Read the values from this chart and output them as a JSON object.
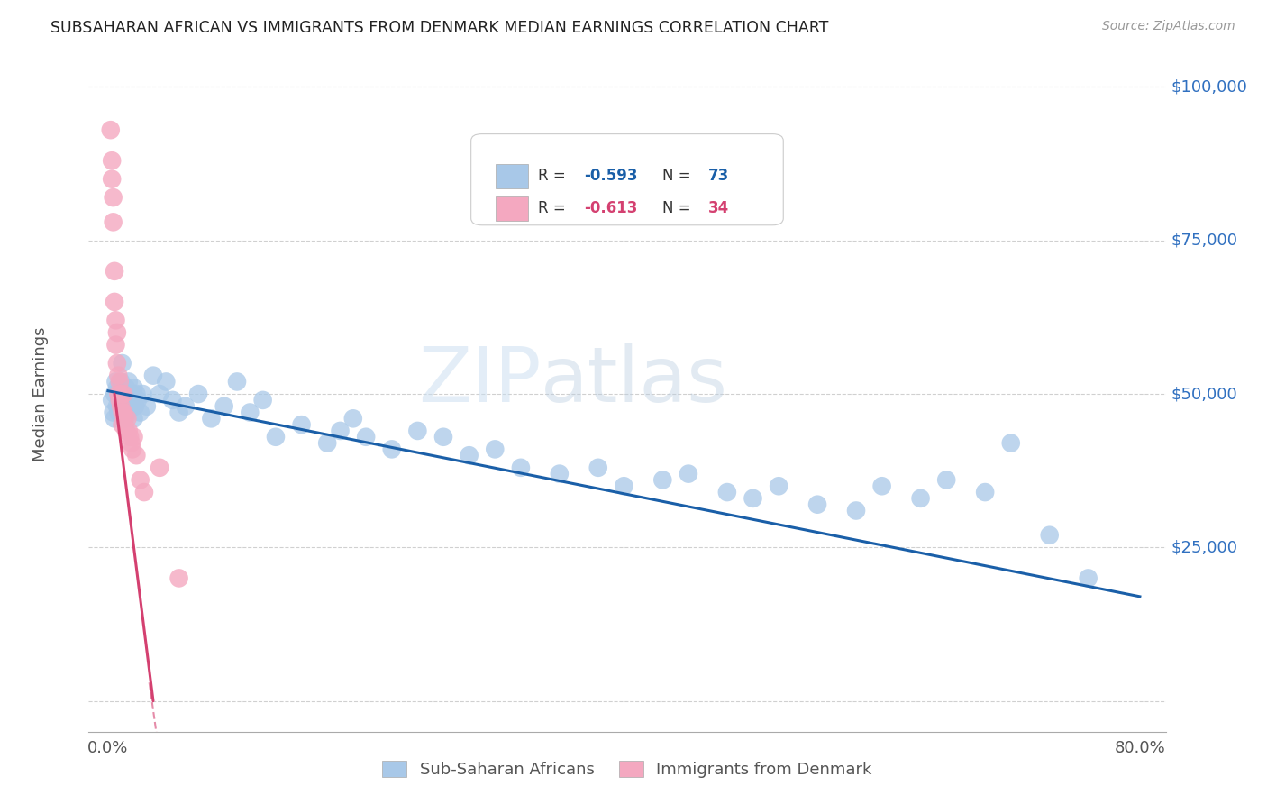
{
  "title": "SUBSAHARAN AFRICAN VS IMMIGRANTS FROM DENMARK MEDIAN EARNINGS CORRELATION CHART",
  "source": "Source: ZipAtlas.com",
  "ylabel": "Median Earnings",
  "watermark_zip": "ZIP",
  "watermark_atlas": "atlas",
  "blue_label": "Sub-Saharan Africans",
  "pink_label": "Immigrants from Denmark",
  "blue_R": "-0.593",
  "blue_N": "73",
  "pink_R": "-0.613",
  "pink_N": "34",
  "blue_scatter_color": "#a8c8e8",
  "blue_line_color": "#1a5fa8",
  "pink_scatter_color": "#f4a8c0",
  "pink_line_color": "#d44070",
  "background_color": "#ffffff",
  "grid_color": "#d0d0d0",
  "blue_scatter_x": [
    0.3,
    0.4,
    0.5,
    0.5,
    0.6,
    0.7,
    0.7,
    0.8,
    0.8,
    0.9,
    1.0,
    1.0,
    1.1,
    1.2,
    1.2,
    1.3,
    1.3,
    1.4,
    1.5,
    1.5,
    1.6,
    1.7,
    1.8,
    1.9,
    2.0,
    2.0,
    2.1,
    2.2,
    2.3,
    2.5,
    2.7,
    3.0,
    3.5,
    4.0,
    4.5,
    5.0,
    5.5,
    6.0,
    7.0,
    8.0,
    9.0,
    10.0,
    11.0,
    12.0,
    13.0,
    15.0,
    17.0,
    18.0,
    19.0,
    20.0,
    22.0,
    24.0,
    26.0,
    28.0,
    30.0,
    32.0,
    35.0,
    38.0,
    40.0,
    43.0,
    45.0,
    48.0,
    50.0,
    52.0,
    55.0,
    58.0,
    60.0,
    63.0,
    65.0,
    68.0,
    70.0,
    73.0,
    76.0
  ],
  "blue_scatter_y": [
    49000,
    47000,
    50000,
    46000,
    52000,
    48000,
    51000,
    50000,
    47000,
    49000,
    52000,
    48000,
    55000,
    50000,
    47000,
    49000,
    46000,
    51000,
    50000,
    47000,
    52000,
    49000,
    48000,
    50000,
    51000,
    46000,
    48000,
    50000,
    49000,
    47000,
    50000,
    48000,
    53000,
    50000,
    52000,
    49000,
    47000,
    48000,
    50000,
    46000,
    48000,
    52000,
    47000,
    49000,
    43000,
    45000,
    42000,
    44000,
    46000,
    43000,
    41000,
    44000,
    43000,
    40000,
    41000,
    38000,
    37000,
    38000,
    35000,
    36000,
    37000,
    34000,
    33000,
    35000,
    32000,
    31000,
    35000,
    33000,
    36000,
    34000,
    42000,
    27000,
    20000
  ],
  "pink_scatter_x": [
    0.2,
    0.3,
    0.3,
    0.4,
    0.4,
    0.5,
    0.5,
    0.6,
    0.6,
    0.7,
    0.7,
    0.8,
    0.8,
    0.9,
    0.9,
    1.0,
    1.0,
    1.1,
    1.1,
    1.2,
    1.2,
    1.3,
    1.4,
    1.5,
    1.6,
    1.7,
    1.8,
    1.9,
    2.0,
    2.2,
    2.5,
    2.8,
    4.0,
    5.5
  ],
  "pink_scatter_y": [
    93000,
    88000,
    85000,
    78000,
    82000,
    70000,
    65000,
    62000,
    58000,
    55000,
    60000,
    53000,
    50000,
    52000,
    49000,
    50000,
    48000,
    47000,
    45000,
    50000,
    47000,
    46000,
    44000,
    46000,
    44000,
    43000,
    42000,
    41000,
    43000,
    40000,
    36000,
    34000,
    38000,
    20000
  ],
  "blue_trend": [
    0.0,
    50500,
    80.0,
    17000
  ],
  "pink_trend_solid": [
    0.5,
    50000,
    3.5,
    0
  ],
  "pink_trend_dashed": [
    3.2,
    3000,
    4.2,
    -12000
  ],
  "xlim_min": -1.5,
  "xlim_max": 82,
  "ylim_min": -5000,
  "ylim_max": 105000,
  "ytick_vals": [
    0,
    25000,
    50000,
    75000,
    100000
  ],
  "ytick_labels": [
    "",
    "$25,000",
    "$50,000",
    "$75,000",
    "$100,000"
  ],
  "xtick_labels": [
    "0.0%",
    "80.0%"
  ],
  "xtick_positions": [
    0,
    80
  ],
  "xtick_minor": [
    10,
    20,
    30,
    40,
    50,
    60,
    70
  ]
}
